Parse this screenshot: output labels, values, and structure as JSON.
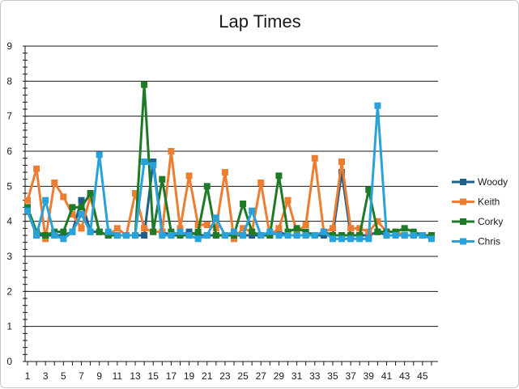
{
  "chart_data": {
    "type": "line",
    "title": "Lap Times",
    "xlabel": "",
    "ylabel": "",
    "ylim": [
      0,
      9
    ],
    "yticks": [
      0,
      1,
      2,
      3,
      4,
      5,
      6,
      7,
      8,
      9
    ],
    "x": [
      1,
      2,
      3,
      4,
      5,
      6,
      7,
      8,
      9,
      10,
      11,
      12,
      13,
      14,
      15,
      16,
      17,
      18,
      19,
      20,
      21,
      22,
      23,
      24,
      25,
      26,
      27,
      28,
      29,
      30,
      31,
      32,
      33,
      34,
      35,
      36,
      37,
      38,
      39,
      40,
      41,
      42,
      43,
      44,
      45,
      46
    ],
    "xtick_labels": [
      "1",
      "3",
      "5",
      "7",
      "9",
      "11",
      "13",
      "15",
      "17",
      "19",
      "21",
      "23",
      "25",
      "27",
      "29",
      "31",
      "33",
      "35",
      "37",
      "39",
      "41",
      "43",
      "45"
    ],
    "grid": "horizontal",
    "legend_position": "right",
    "series": [
      {
        "name": "Woody",
        "color": "#1f5f8b",
        "values": [
          4.3,
          3.6,
          3.6,
          3.6,
          3.6,
          3.7,
          4.6,
          3.7,
          3.7,
          3.6,
          3.6,
          3.6,
          3.6,
          3.6,
          5.7,
          3.7,
          3.6,
          3.6,
          3.7,
          3.6,
          3.6,
          3.6,
          3.6,
          3.6,
          3.6,
          3.6,
          3.6,
          3.6,
          3.7,
          3.6,
          3.6,
          3.6,
          3.6,
          3.6,
          3.6,
          5.4,
          3.6,
          3.6,
          3.6,
          3.7,
          3.6,
          3.6,
          3.6,
          3.6,
          3.6,
          3.6
        ]
      },
      {
        "name": "Keith",
        "color": "#ed7d31",
        "values": [
          4.6,
          5.5,
          3.5,
          5.1,
          4.7,
          4.2,
          3.8,
          4.7,
          3.7,
          3.6,
          3.8,
          3.6,
          4.8,
          3.8,
          3.7,
          3.7,
          6.0,
          3.8,
          5.3,
          3.9,
          3.9,
          3.8,
          5.4,
          3.5,
          3.8,
          3.7,
          5.1,
          3.6,
          3.8,
          4.6,
          3.7,
          3.9,
          5.8,
          3.7,
          3.8,
          5.7,
          3.8,
          3.8,
          3.7,
          4.0,
          3.7,
          3.7,
          3.6,
          3.6,
          3.6,
          3.6
        ]
      },
      {
        "name": "Corky",
        "color": "#1e7a27",
        "values": [
          4.4,
          3.7,
          3.6,
          3.7,
          3.7,
          4.4,
          4.4,
          4.8,
          3.7,
          3.6,
          3.6,
          3.6,
          3.6,
          7.9,
          3.7,
          5.2,
          3.7,
          3.6,
          3.6,
          3.7,
          5.0,
          3.6,
          3.6,
          3.6,
          4.5,
          3.7,
          3.6,
          3.6,
          5.3,
          3.7,
          3.8,
          3.7,
          3.6,
          3.7,
          3.6,
          3.6,
          3.6,
          3.6,
          4.9,
          3.7,
          3.7,
          3.7,
          3.8,
          3.7,
          3.6,
          3.6
        ]
      },
      {
        "name": "Chris",
        "color": "#28a2d8",
        "values": [
          4.3,
          3.6,
          4.6,
          3.6,
          3.5,
          3.7,
          4.2,
          3.7,
          5.9,
          3.7,
          3.6,
          3.6,
          3.6,
          5.7,
          5.6,
          3.6,
          3.6,
          3.7,
          3.6,
          3.5,
          3.6,
          4.1,
          3.6,
          3.7,
          3.6,
          4.3,
          3.6,
          3.7,
          3.6,
          3.6,
          3.6,
          3.6,
          3.6,
          3.7,
          3.5,
          3.5,
          3.5,
          3.5,
          3.5,
          7.3,
          3.6,
          3.6,
          3.6,
          3.6,
          3.6,
          3.5
        ]
      }
    ]
  }
}
